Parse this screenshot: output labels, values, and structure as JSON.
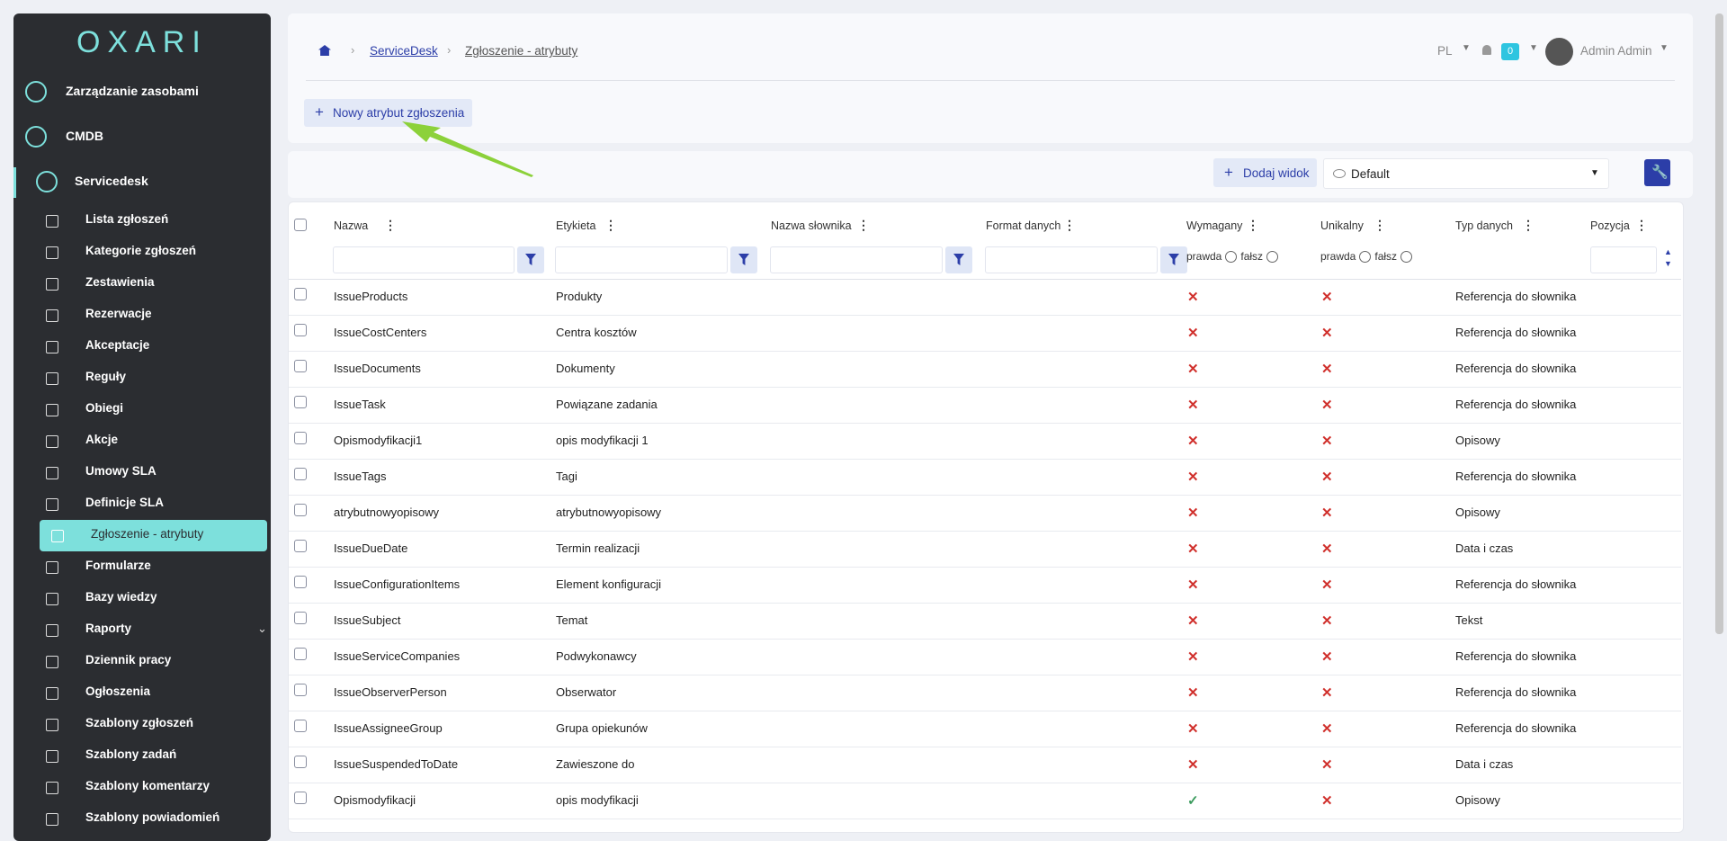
{
  "sidebar": {
    "logo": "OXARI",
    "sections": [
      {
        "label": "Zarządzanie zasobami"
      },
      {
        "label": "CMDB"
      },
      {
        "label": "Servicedesk"
      }
    ],
    "items": [
      {
        "label": "Lista zgłoszeń"
      },
      {
        "label": "Kategorie zgłoszeń"
      },
      {
        "label": "Zestawienia"
      },
      {
        "label": "Rezerwacje"
      },
      {
        "label": "Akceptacje"
      },
      {
        "label": "Reguły"
      },
      {
        "label": "Obiegi"
      },
      {
        "label": "Akcje"
      },
      {
        "label": "Umowy SLA"
      },
      {
        "label": "Definicje SLA"
      },
      {
        "label": "Zgłoszenie - atrybuty",
        "active": true
      },
      {
        "label": "Formularze"
      },
      {
        "label": "Bazy wiedzy"
      },
      {
        "label": "Raporty"
      },
      {
        "label": "Dziennik pracy"
      },
      {
        "label": "Ogłoszenia"
      },
      {
        "label": "Szablony zgłoszeń"
      },
      {
        "label": "Szablony zadań"
      },
      {
        "label": "Szablony komentarzy"
      },
      {
        "label": "Szablony powiadomień"
      }
    ]
  },
  "header": {
    "breadcrumb": [
      "ServiceDesk",
      "Zgłoszenie - atrybuty"
    ],
    "language": "PL",
    "notifications": "0",
    "user": "Admin Admin",
    "new_button": "Nowy atrybut zgłoszenia"
  },
  "toolbar": {
    "add_view": "Dodaj widok",
    "view": "Default"
  },
  "table": {
    "columns": [
      "Nazwa",
      "Etykieta",
      "Nazwa słownika",
      "Format danych",
      "Wymagany",
      "Unikalny",
      "Typ danych",
      "Pozycja"
    ],
    "radio_labels": [
      "prawda",
      "fałsz"
    ],
    "rows": [
      {
        "name": "IssueProducts",
        "label": "Produkty",
        "required": false,
        "unique": false,
        "type": "Referencja do słownika"
      },
      {
        "name": "IssueCostCenters",
        "label": "Centra kosztów",
        "required": false,
        "unique": false,
        "type": "Referencja do słownika"
      },
      {
        "name": "IssueDocuments",
        "label": "Dokumenty",
        "required": false,
        "unique": false,
        "type": "Referencja do słownika"
      },
      {
        "name": "IssueTask",
        "label": "Powiązane zadania",
        "required": false,
        "unique": false,
        "type": "Referencja do słownika"
      },
      {
        "name": "Opismodyfikacji1",
        "label": "opis modyfikacji 1",
        "required": false,
        "unique": false,
        "type": "Opisowy"
      },
      {
        "name": "IssueTags",
        "label": "Tagi",
        "required": false,
        "unique": false,
        "type": "Referencja do słownika"
      },
      {
        "name": "atrybutnowyopisowy",
        "label": "atrybutnowyopisowy",
        "required": false,
        "unique": false,
        "type": "Opisowy"
      },
      {
        "name": "IssueDueDate",
        "label": "Termin realizacji",
        "required": false,
        "unique": false,
        "type": "Data i czas"
      },
      {
        "name": "IssueConfigurationItems",
        "label": "Element konfiguracji",
        "required": false,
        "unique": false,
        "type": "Referencja do słownika"
      },
      {
        "name": "IssueSubject",
        "label": "Temat",
        "required": false,
        "unique": false,
        "type": "Tekst"
      },
      {
        "name": "IssueServiceCompanies",
        "label": "Podwykonawcy",
        "required": false,
        "unique": false,
        "type": "Referencja do słownika"
      },
      {
        "name": "IssueObserverPerson",
        "label": "Obserwator",
        "required": false,
        "unique": false,
        "type": "Referencja do słownika"
      },
      {
        "name": "IssueAssigneeGroup",
        "label": "Grupa opiekunów",
        "required": false,
        "unique": false,
        "type": "Referencja do słownika"
      },
      {
        "name": "IssueSuspendedToDate",
        "label": "Zawieszone do",
        "required": false,
        "unique": false,
        "type": "Data i czas"
      },
      {
        "name": "Opismodyfikacji",
        "label": "opis modyfikacji",
        "required": true,
        "unique": false,
        "type": "Opisowy"
      }
    ]
  }
}
